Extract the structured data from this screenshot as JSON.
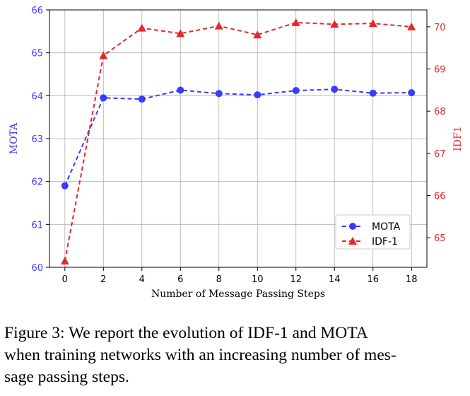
{
  "chart_data": {
    "type": "line",
    "xlabel": "Number of Message Passing Steps",
    "x": [
      0,
      2,
      4,
      6,
      8,
      10,
      12,
      14,
      16,
      18
    ],
    "xlim": [
      -0.8,
      18.8
    ],
    "xticks": [
      0,
      2,
      4,
      6,
      8,
      10,
      12,
      14,
      16,
      18
    ],
    "grid": true,
    "legend_position": "lower-right",
    "left_axis": {
      "label": "MOTA",
      "color": "#3b3bff",
      "ylim": [
        60,
        66
      ],
      "ticks": [
        60,
        61,
        62,
        63,
        64,
        65,
        66
      ]
    },
    "right_axis": {
      "label": "IDF1",
      "color": "#e8272b",
      "ylim": [
        64.3,
        70.4
      ],
      "ticks": [
        65,
        66,
        67,
        68,
        69,
        70
      ]
    },
    "series": [
      {
        "name": "MOTA",
        "axis": "left",
        "color": "#3b3bff",
        "marker": "circle",
        "values": [
          61.9,
          63.95,
          63.92,
          64.13,
          64.05,
          64.02,
          64.12,
          64.15,
          64.06,
          64.07
        ]
      },
      {
        "name": "IDF-1",
        "axis": "right",
        "color": "#e8272b",
        "marker": "triangle",
        "values": [
          64.45,
          69.32,
          69.97,
          69.84,
          70.02,
          69.81,
          70.1,
          70.06,
          70.08,
          70.0
        ]
      }
    ]
  },
  "caption": [
    "Figure 3:  We report the evolution of IDF-1 and MOTA",
    "when training networks with an increasing number of mes-",
    "sage passing steps."
  ]
}
